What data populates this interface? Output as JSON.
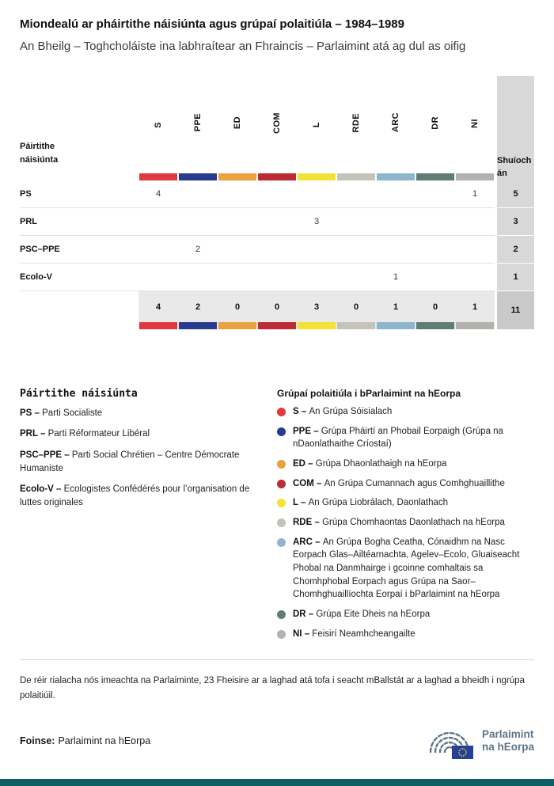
{
  "header": {
    "title": "Miondealú ar pháirtithe náisiúnta agus grúpaí polaitiúla – 1984–1989",
    "subtitle": "An Bheilg – Toghcholáiste ina labhraítear an Fhraincis – Parlaimint atá ag dul as oifig"
  },
  "chart_data": {
    "type": "table",
    "title": "Miondealú ar pháirtithe náisiúnta agus grúpaí polaitiúla – 1984–1989",
    "subtitle": "An Bheilg – Toghcholáiste ina labhraítear an Fhraincis – Parlaimint atá ag dul as oifig",
    "row_header": "Páirtithe náisiúnta",
    "seats_header": "Shuíochán",
    "groups": [
      {
        "code": "S",
        "color": "#e03a3e"
      },
      {
        "code": "PPE",
        "color": "#273c8e"
      },
      {
        "code": "ED",
        "color": "#e9a23f"
      },
      {
        "code": "COM",
        "color": "#bd2b35"
      },
      {
        "code": "L",
        "color": "#f2e236"
      },
      {
        "code": "RDE",
        "color": "#c5c3b9"
      },
      {
        "code": "ARC",
        "color": "#8db6cd"
      },
      {
        "code": "DR",
        "color": "#607d75"
      },
      {
        "code": "NI",
        "color": "#b1b1ad"
      }
    ],
    "rows": [
      {
        "party": "PS",
        "values": [
          4,
          null,
          null,
          null,
          null,
          null,
          null,
          null,
          1
        ],
        "total": 5
      },
      {
        "party": "PRL",
        "values": [
          null,
          null,
          null,
          null,
          3,
          null,
          null,
          null,
          null
        ],
        "total": 3
      },
      {
        "party": "PSC–PPE",
        "values": [
          null,
          2,
          null,
          null,
          null,
          null,
          null,
          null,
          null
        ],
        "total": 2
      },
      {
        "party": "Ecolo-V",
        "values": [
          null,
          null,
          null,
          null,
          null,
          null,
          1,
          null,
          null
        ],
        "total": 1
      }
    ],
    "totals": {
      "values": [
        4,
        2,
        0,
        0,
        3,
        0,
        1,
        0,
        1
      ],
      "total": 11
    }
  },
  "legend_parties": {
    "title": "Páirtithe náisiúnta",
    "items": [
      {
        "label": "PS –",
        "text": "Parti Socialiste"
      },
      {
        "label": "PRL –",
        "text": "Parti Réformateur Libéral"
      },
      {
        "label": "PSC–PPE –",
        "text": "Parti Social Chrétien – Centre Démocrate Humaniste"
      },
      {
        "label": "Ecolo-V –",
        "text": "Ecologistes Confédérés pour l’organisation de luttes originales"
      }
    ]
  },
  "legend_groups": {
    "title": "Grúpaí polaitiúla i bParlaimint na hEorpa",
    "items": [
      {
        "code": "S",
        "label": "S –",
        "text": "An Grúpa Sóisialach"
      },
      {
        "code": "PPE",
        "label": "PPE –",
        "text": "Grúpa Pháirtí an Phobail Eorpaigh (Grúpa na nDaonlathaithe Críostaí)"
      },
      {
        "code": "ED",
        "label": "ED –",
        "text": "Grúpa Dhaonlathaigh na hEorpa"
      },
      {
        "code": "COM",
        "label": "COM –",
        "text": "An Grúpa Cumannach agus Comhghuaillithe"
      },
      {
        "code": "L",
        "label": "L –",
        "text": "An Grúpa Liobrálach, Daonlathach"
      },
      {
        "code": "RDE",
        "label": "RDE –",
        "text": "Grúpa Chomhaontas Daonlathach na hEorpa"
      },
      {
        "code": "ARC",
        "label": "ARC –",
        "text": "An Grúpa Bogha Ceatha, Cónaidhm na Nasc Eorpach Glas–Ailtéarnachta, Agelev–Ecolo, Gluaiseacht Phobal na Danmhairge i gcoinne comhaltais sa Chomhphobal Eorpach agus Grúpa na Saor–Chomhghuaillíochta Eorpaí i bParlaimint na hEorpa"
      },
      {
        "code": "DR",
        "label": "DR –",
        "text": "Grúpa Eite Dheis na hEorpa"
      },
      {
        "code": "NI",
        "label": "NI –",
        "text": "Feisirí Neamhcheangailte"
      }
    ]
  },
  "footnote": "De réir rialacha nós imeachta na Parlaiminte, 23 Fheisire ar a laghad atá tofa i seacht mBallstát ar a laghad a bheidh i ngrúpa polaitiúil.",
  "footer": {
    "source_label": "Foinse:",
    "source_text": "Parlaimint na hEorpa",
    "logo_line1": "Parlaimint",
    "logo_line2": "na hEorpa"
  },
  "colors": {
    "seats_column_bg": "#d8d8d8",
    "totals_row_bg": "#e9e9e9",
    "grand_total_bg": "#c9c9c9",
    "bottom_bar": "#0f5e66",
    "logo_text": "#5d7588",
    "eu_flag_blue": "#24419a",
    "eu_flag_stars": "#f7d21a"
  }
}
